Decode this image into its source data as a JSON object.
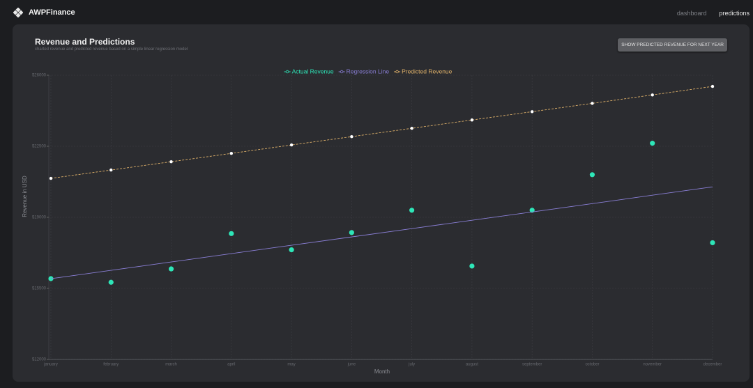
{
  "header": {
    "brand": "AWPFinance",
    "nav": [
      "dashboard",
      "predictions"
    ]
  },
  "card": {
    "title": "Revenue and Predictions",
    "subtitle": "charted revenue and predicted revenue based on a simple linear regression model",
    "button": "SHOW PREDICTED REVENUE FOR NEXT YEAR"
  },
  "chart_data": {
    "type": "line",
    "x_label": "Month",
    "y_label": "Revenue in USD",
    "categories": [
      "january",
      "february",
      "march",
      "april",
      "may",
      "june",
      "july",
      "august",
      "september",
      "october",
      "november",
      "december"
    ],
    "series": [
      {
        "name": "Actual Revenue",
        "color": "#2ee6b8",
        "mode": "markers",
        "values": [
          15980,
          15800,
          16460,
          18200,
          17400,
          18250,
          19350,
          16600,
          19350,
          21100,
          22650,
          17750
        ]
      },
      {
        "name": "Regression Line",
        "color": "#8a7fd6",
        "mode": "line",
        "values": [
          15980,
          16390,
          16800,
          17215,
          17625,
          18035,
          18445,
          18855,
          19265,
          19675,
          20090,
          20500
        ]
      },
      {
        "name": "Predicted Revenue",
        "color": "#e0b26a",
        "marker_color": "#ffffff",
        "mode": "dashed-line+markers",
        "values": [
          20920,
          21330,
          21740,
          22150,
          22565,
          22975,
          23385,
          23795,
          24205,
          24615,
          25030,
          25450
        ]
      }
    ],
    "ylim": [
      12000,
      26000
    ],
    "yticks": [
      {
        "value": 12000,
        "label": "$12000"
      },
      {
        "value": 15500,
        "label": "$15500"
      },
      {
        "value": 19000,
        "label": "$19000"
      },
      {
        "value": 22500,
        "label": "$22500"
      },
      {
        "value": 26000,
        "label": "$26000"
      }
    ],
    "grid": true,
    "legend": "top"
  }
}
